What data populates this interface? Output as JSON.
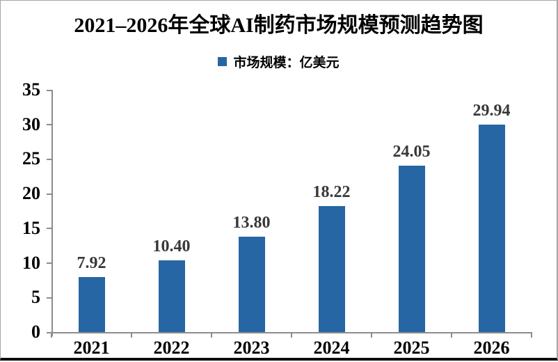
{
  "chart_data": {
    "type": "bar",
    "title": "2021–2026年全球AI制药市场规模预测趋势图",
    "legend_label": "市场规模：亿美元",
    "legend_position": "top",
    "categories": [
      "2021",
      "2022",
      "2023",
      "2024",
      "2025",
      "2026"
    ],
    "values": [
      7.92,
      10.4,
      13.8,
      18.22,
      24.05,
      29.94
    ],
    "value_labels": [
      "7.92",
      "10.40",
      "13.80",
      "18.22",
      "24.05",
      "29.94"
    ],
    "xlabel": "",
    "ylabel": "",
    "ylim": [
      0,
      35
    ],
    "y_tick_step": 5,
    "y_tick_labels": [
      "0",
      "5",
      "10",
      "15",
      "20",
      "25",
      "30",
      "35"
    ],
    "grid": false,
    "colors": {
      "bar": "#2666a4",
      "axis": "#8c8c8c",
      "value_label": "#383838",
      "text": "#000000",
      "frame_border": "#a6a6a6",
      "bottom_edge": "#0d0d0d"
    }
  }
}
